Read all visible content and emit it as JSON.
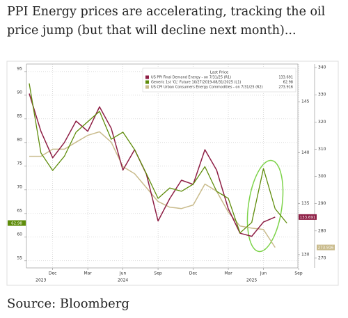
{
  "header": {
    "title": "PPI Energy prices are accelerating, tracking the oil price jump (but that will decline next month)..."
  },
  "chart_data": {
    "type": "line",
    "legend_title": "Last Price",
    "x": [
      "2023-10",
      "2023-11",
      "2023-12",
      "2024-01",
      "2024-02",
      "2024-03",
      "2024-04",
      "2024-05",
      "2024-06",
      "2024-07",
      "2024-08",
      "2024-09",
      "2024-10",
      "2024-11",
      "2024-12",
      "2025-01",
      "2025-02",
      "2025-03",
      "2025-04",
      "2025-05",
      "2025-06",
      "2025-07",
      "2025-08"
    ],
    "xlim": [
      "2023-10",
      "2025-09"
    ],
    "xticks": [
      {
        "value": "2023-12",
        "label": "Dec"
      },
      {
        "value": "2024-03",
        "label": "Mar"
      },
      {
        "value": "2024-06",
        "label": "Jun"
      },
      {
        "value": "2024-09",
        "label": "Sep"
      },
      {
        "value": "2024-12",
        "label": "Dec"
      },
      {
        "value": "2025-03",
        "label": "Mar"
      },
      {
        "value": "2025-06",
        "label": "Jun"
      },
      {
        "value": "2025-09",
        "label": "Sep"
      }
    ],
    "x_year_labels": [
      {
        "value": "2023-11",
        "label": "2023"
      },
      {
        "value": "2024-06",
        "label": "2024"
      },
      {
        "value": "2025-05",
        "label": "2025"
      }
    ],
    "ylim": [
      53.5,
      96.6
    ],
    "yticks": [
      55,
      60,
      65,
      70,
      75,
      80,
      85,
      90,
      95
    ],
    "y2lim": [
      128.7,
      148.7
    ],
    "y2ticks": [
      130,
      135,
      140,
      145
    ],
    "y3lim": [
      266.4,
      341.3
    ],
    "y3ticks": [
      270,
      280,
      290,
      300,
      310,
      320,
      330,
      340
    ],
    "grid": true,
    "series": [
      {
        "name": "US PPI Final Demand Energy - on 7/31/25 (R1)",
        "color": "#8e1f45",
        "axis": "y2",
        "values": [
          145.8,
          142.1,
          139.5,
          141.0,
          143.1,
          142.1,
          144.5,
          142.4,
          138.3,
          140.3,
          137.9,
          133.3,
          135.5,
          137.3,
          136.9,
          140.3,
          138.3,
          134.5,
          132.1,
          131.8,
          133.2,
          133.691,
          null
        ]
      },
      {
        "name": "Generic 1st 'CL' Future 10/27/2019-08/31/2025 (L1)",
        "color": "#5e8c0a",
        "axis": "y",
        "values": [
          92.5,
          77.8,
          74.1,
          77.1,
          82.2,
          84.4,
          86.6,
          80.7,
          82.2,
          78.5,
          73.4,
          68.2,
          70.4,
          69.7,
          71.2,
          74.9,
          69.7,
          68.2,
          60.9,
          63.1,
          74.5,
          66.0,
          62.98
        ]
      },
      {
        "name": "US CPI Urban Consumers Energy Commodities - on 7/31/25 (R2)",
        "color": "#c9bb8c",
        "axis": "y3",
        "values": [
          307.4,
          307.4,
          310.0,
          310.0,
          312.6,
          315.1,
          316.4,
          312.6,
          303.6,
          301.0,
          295.9,
          290.8,
          288.7,
          288.2,
          289.5,
          297.2,
          294.6,
          286.9,
          281.8,
          281.0,
          280.5,
          273.916,
          null
        ]
      }
    ]
  },
  "footer": {
    "source": "Source: Bloomberg"
  }
}
